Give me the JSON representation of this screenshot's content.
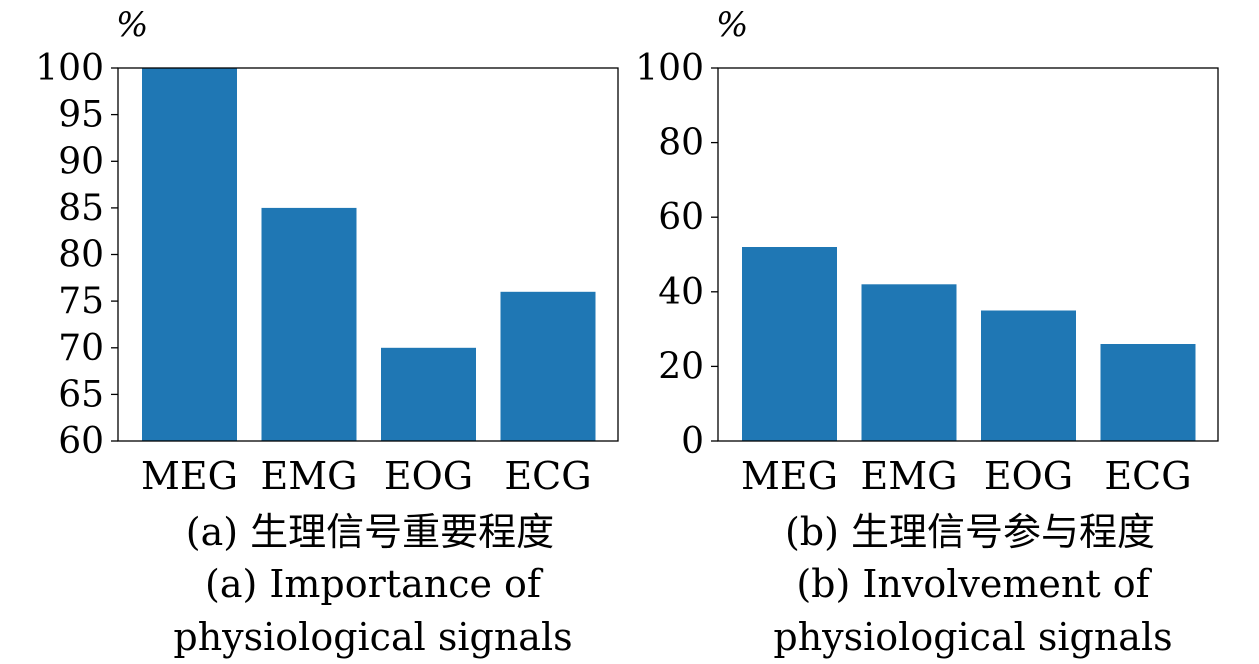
{
  "chart_data": [
    {
      "type": "bar",
      "ylabel": "%",
      "categories": [
        "MEG",
        "EMG",
        "EOG",
        "ECG"
      ],
      "values": [
        100,
        85,
        70,
        76
      ],
      "ylim": [
        60,
        100
      ],
      "yticks": [
        "60",
        "65",
        "70",
        "75",
        "80",
        "85",
        "90",
        "95",
        "100"
      ],
      "color": "#1f77b4",
      "caption_cn": "(a) 生理信号重要程度",
      "caption_en_1": "(a) Importance of",
      "caption_en_2": "physiological signals"
    },
    {
      "type": "bar",
      "ylabel": "%",
      "categories": [
        "MEG",
        "EMG",
        "EOG",
        "ECG"
      ],
      "values": [
        52,
        42,
        35,
        26
      ],
      "ylim": [
        0,
        100
      ],
      "yticks": [
        "0",
        "20",
        "40",
        "60",
        "80",
        "100"
      ],
      "color": "#1f77b4",
      "caption_cn": "(b) 生理信号参与程度",
      "caption_en_1": "(b) Involvement of",
      "caption_en_2": "physiological signals"
    }
  ]
}
